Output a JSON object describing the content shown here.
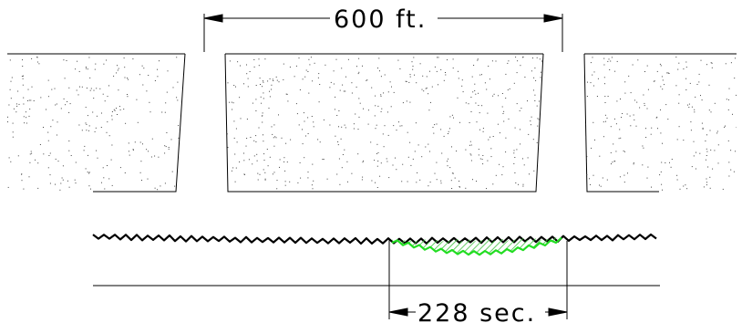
{
  "top_dimension": {
    "label": "600 ft."
  },
  "bottom_dimension": {
    "label": "228 sec."
  },
  "colors": {
    "line": "#000000",
    "stipple": "#444444",
    "highlight_outline": "#22dd22",
    "highlight_fill": "#7ee07e",
    "background": "#ffffff"
  }
}
